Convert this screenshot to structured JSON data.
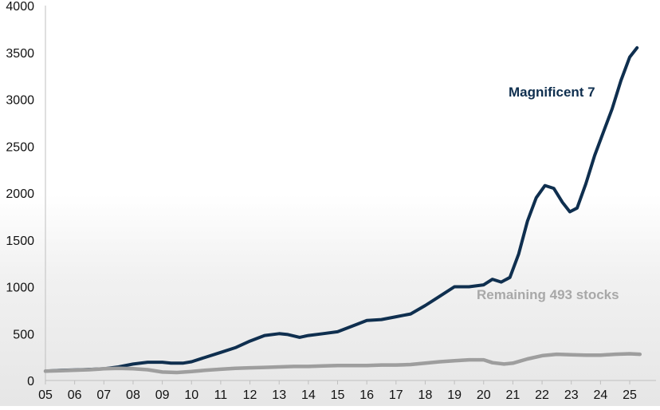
{
  "chart_data": {
    "type": "line",
    "title": "",
    "xlabel": "",
    "ylabel": "",
    "xlim": [
      2005,
      2025.9
    ],
    "ylim": [
      0,
      4000
    ],
    "grid": false,
    "legend": "inline labels",
    "x_ticks": [
      "05",
      "06",
      "07",
      "08",
      "09",
      "10",
      "11",
      "12",
      "13",
      "14",
      "15",
      "16",
      "17",
      "18",
      "19",
      "20",
      "21",
      "22",
      "23",
      "24",
      "25"
    ],
    "y_ticks": [
      0,
      500,
      1000,
      1500,
      2000,
      2500,
      3000,
      3500,
      4000
    ],
    "series": [
      {
        "name": "Magnificent 7",
        "color": "#0f2f4f",
        "points": [
          [
            2005.0,
            100
          ],
          [
            2005.5,
            108
          ],
          [
            2006.0,
            112
          ],
          [
            2006.5,
            118
          ],
          [
            2007.0,
            125
          ],
          [
            2007.5,
            145
          ],
          [
            2008.0,
            175
          ],
          [
            2008.5,
            195
          ],
          [
            2009.0,
            195
          ],
          [
            2009.3,
            185
          ],
          [
            2009.7,
            185
          ],
          [
            2010.0,
            200
          ],
          [
            2010.5,
            250
          ],
          [
            2011.0,
            300
          ],
          [
            2011.5,
            350
          ],
          [
            2012.0,
            420
          ],
          [
            2012.5,
            480
          ],
          [
            2013.0,
            500
          ],
          [
            2013.3,
            490
          ],
          [
            2013.7,
            460
          ],
          [
            2014.0,
            480
          ],
          [
            2014.5,
            500
          ],
          [
            2015.0,
            520
          ],
          [
            2015.5,
            580
          ],
          [
            2016.0,
            640
          ],
          [
            2016.5,
            650
          ],
          [
            2017.0,
            680
          ],
          [
            2017.5,
            710
          ],
          [
            2018.0,
            800
          ],
          [
            2018.5,
            900
          ],
          [
            2019.0,
            1000
          ],
          [
            2019.5,
            1000
          ],
          [
            2020.0,
            1020
          ],
          [
            2020.3,
            1080
          ],
          [
            2020.6,
            1050
          ],
          [
            2020.9,
            1100
          ],
          [
            2021.2,
            1350
          ],
          [
            2021.5,
            1700
          ],
          [
            2021.8,
            1950
          ],
          [
            2022.1,
            2080
          ],
          [
            2022.4,
            2050
          ],
          [
            2022.7,
            1900
          ],
          [
            2022.95,
            1800
          ],
          [
            2023.2,
            1840
          ],
          [
            2023.5,
            2100
          ],
          [
            2023.8,
            2400
          ],
          [
            2024.1,
            2650
          ],
          [
            2024.4,
            2900
          ],
          [
            2024.7,
            3200
          ],
          [
            2025.0,
            3450
          ],
          [
            2025.25,
            3550
          ]
        ]
      },
      {
        "name": "Remaining 493 stocks",
        "color": "#9e9e9e",
        "points": [
          [
            2005.0,
            100
          ],
          [
            2005.5,
            105
          ],
          [
            2006.0,
            110
          ],
          [
            2006.5,
            115
          ],
          [
            2007.0,
            125
          ],
          [
            2007.5,
            130
          ],
          [
            2008.0,
            125
          ],
          [
            2008.5,
            115
          ],
          [
            2009.0,
            90
          ],
          [
            2009.5,
            85
          ],
          [
            2010.0,
            95
          ],
          [
            2010.5,
            110
          ],
          [
            2011.0,
            120
          ],
          [
            2011.5,
            130
          ],
          [
            2012.0,
            135
          ],
          [
            2012.5,
            140
          ],
          [
            2013.0,
            145
          ],
          [
            2013.5,
            150
          ],
          [
            2014.0,
            150
          ],
          [
            2014.5,
            155
          ],
          [
            2015.0,
            160
          ],
          [
            2015.5,
            160
          ],
          [
            2016.0,
            160
          ],
          [
            2016.5,
            165
          ],
          [
            2017.0,
            165
          ],
          [
            2017.5,
            170
          ],
          [
            2018.0,
            185
          ],
          [
            2018.5,
            200
          ],
          [
            2019.0,
            210
          ],
          [
            2019.5,
            220
          ],
          [
            2020.0,
            220
          ],
          [
            2020.3,
            190
          ],
          [
            2020.7,
            175
          ],
          [
            2021.0,
            185
          ],
          [
            2021.5,
            230
          ],
          [
            2022.0,
            265
          ],
          [
            2022.5,
            280
          ],
          [
            2023.0,
            275
          ],
          [
            2023.5,
            270
          ],
          [
            2024.0,
            270
          ],
          [
            2024.5,
            280
          ],
          [
            2025.0,
            285
          ],
          [
            2025.35,
            280
          ]
        ]
      }
    ]
  }
}
